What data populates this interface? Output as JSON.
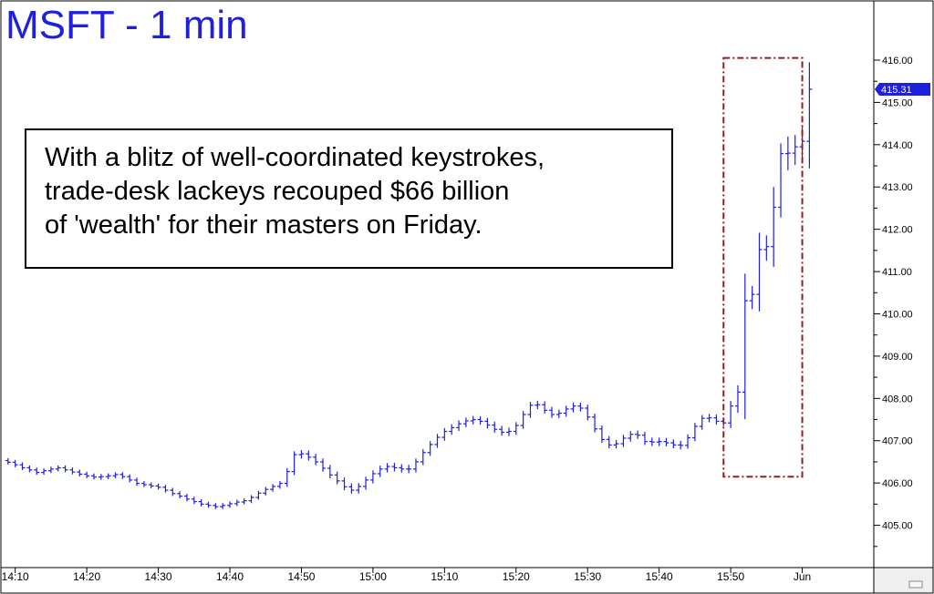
{
  "chart_data": {
    "type": "ohlc",
    "title": "MSFT - 1 min",
    "annotation": {
      "lines": [
        "With a blitz of well-coordinated keystrokes,",
        "trade-desk lackeys recouped $66 billion",
        "of 'wealth' for their masters on Friday."
      ]
    },
    "highlight_range": {
      "x_start": "15:49",
      "x_end": "16:00",
      "y_low": 406.15,
      "y_high": 416.05,
      "color": "#9b1b1b",
      "style": "dash-dot"
    },
    "last_price": {
      "label": "415.31",
      "value": 415.31
    },
    "y_ticks": [
      "416.00",
      "415.00",
      "414.00",
      "413.00",
      "412.00",
      "411.00",
      "410.00",
      "409.00",
      "408.00",
      "407.00",
      "406.00",
      "405.00"
    ],
    "ylim": [
      404.0,
      417.4
    ],
    "x_ticks": [
      "14:10",
      "14:20",
      "14:30",
      "14:40",
      "14:50",
      "15:00",
      "15:10",
      "15:20",
      "15:30",
      "15:40",
      "15:50",
      "Jun"
    ],
    "x_tick_positions": [
      0,
      10,
      20,
      30,
      40,
      50,
      60,
      70,
      80,
      90,
      100,
      110
    ],
    "xlim": [
      -2,
      120
    ],
    "bar_color": "#1f1fe0",
    "series_start_index": -1,
    "closes": [
      406.49,
      406.43,
      406.36,
      406.31,
      406.25,
      406.29,
      406.33,
      406.36,
      406.31,
      406.26,
      406.21,
      406.17,
      406.14,
      406.15,
      406.17,
      406.2,
      406.15,
      406.07,
      405.99,
      405.96,
      405.93,
      405.9,
      405.83,
      405.75,
      405.69,
      405.62,
      405.56,
      405.5,
      405.47,
      405.44,
      405.47,
      405.51,
      405.55,
      405.58,
      405.66,
      405.76,
      405.85,
      405.92,
      405.99,
      406.27,
      406.67,
      406.69,
      406.61,
      406.5,
      406.35,
      406.19,
      406.05,
      405.91,
      405.83,
      405.92,
      406.07,
      406.22,
      406.33,
      406.39,
      406.36,
      406.33,
      406.33,
      406.5,
      406.72,
      406.91,
      407.08,
      407.22,
      407.31,
      407.4,
      407.47,
      407.5,
      407.46,
      407.37,
      407.27,
      407.2,
      407.22,
      407.36,
      407.62,
      407.84,
      407.85,
      407.72,
      407.62,
      407.65,
      407.75,
      407.82,
      407.77,
      407.56,
      407.28,
      407.03,
      406.9,
      406.93,
      407.06,
      407.15,
      407.13,
      406.98,
      406.97,
      406.98,
      406.95,
      406.9,
      406.89,
      407.07,
      407.34,
      407.53,
      407.54,
      407.46,
      407.42,
      407.82,
      408.15,
      410.31,
      410.46,
      411.52,
      411.59,
      412.52,
      413.79,
      413.8,
      413.95,
      414.08,
      415.31
    ],
    "ranges": [
      0.14,
      0.14,
      0.14,
      0.14,
      0.14,
      0.14,
      0.14,
      0.14,
      0.14,
      0.14,
      0.14,
      0.14,
      0.14,
      0.14,
      0.14,
      0.14,
      0.14,
      0.14,
      0.14,
      0.14,
      0.14,
      0.14,
      0.14,
      0.14,
      0.14,
      0.14,
      0.14,
      0.14,
      0.14,
      0.14,
      0.14,
      0.14,
      0.14,
      0.14,
      0.14,
      0.14,
      0.14,
      0.14,
      0.14,
      0.2,
      0.2,
      0.2,
      0.2,
      0.2,
      0.2,
      0.2,
      0.2,
      0.2,
      0.2,
      0.2,
      0.2,
      0.2,
      0.2,
      0.2,
      0.2,
      0.2,
      0.2,
      0.2,
      0.2,
      0.2,
      0.2,
      0.2,
      0.2,
      0.2,
      0.2,
      0.2,
      0.2,
      0.2,
      0.2,
      0.2,
      0.2,
      0.2,
      0.2,
      0.2,
      0.2,
      0.2,
      0.2,
      0.2,
      0.2,
      0.2,
      0.2,
      0.2,
      0.2,
      0.2,
      0.2,
      0.2,
      0.2,
      0.2,
      0.2,
      0.2,
      0.2,
      0.2,
      0.2,
      0.2,
      0.2,
      0.2,
      0.2,
      0.2,
      0.2,
      0.2,
      0.2,
      0.3,
      0.4,
      1.6,
      0.5,
      1.0,
      0.6,
      1.2,
      0.6,
      0.8,
      0.7,
      0.8,
      1.6
    ]
  }
}
